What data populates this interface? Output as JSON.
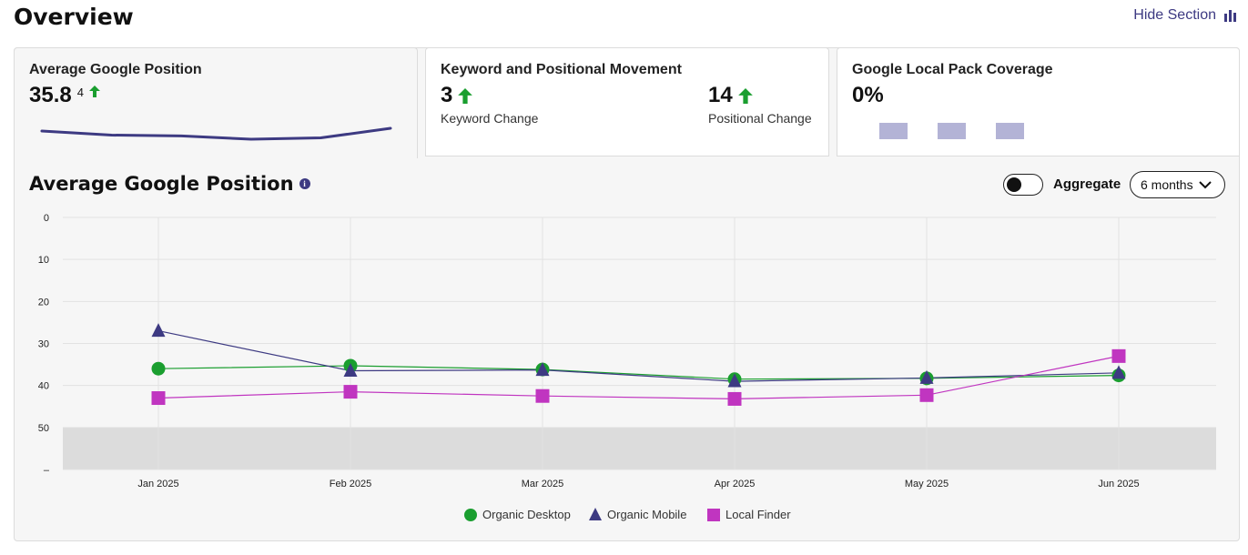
{
  "header": {
    "title": "Overview",
    "hide_section_label": "Hide Section"
  },
  "cards": {
    "avg_position": {
      "title": "Average Google Position",
      "value": "35.8",
      "change": "4",
      "sparkline": [
        34,
        35.5,
        35.8,
        37,
        36.5,
        33
      ]
    },
    "movement": {
      "title": "Keyword and Positional Movement",
      "keyword_value": "3",
      "keyword_label": "Keyword Change",
      "positional_value": "14",
      "positional_label": "Positional Change"
    },
    "local_pack": {
      "title": "Google Local Pack Coverage",
      "value": "0%"
    }
  },
  "chart_panel": {
    "title": "Average Google Position",
    "aggregate_label": "Aggregate",
    "aggregate_on": false,
    "period_select": "6 months"
  },
  "chart_data": {
    "type": "line",
    "categories": [
      "Jan 2025",
      "Feb 2025",
      "Mar 2025",
      "Apr 2025",
      "May 2025",
      "Jun 2025"
    ],
    "y_ticks": [
      "0",
      "10",
      "20",
      "30",
      "40",
      "50",
      "–"
    ],
    "ylim": [
      0,
      60
    ],
    "y_inverted": true,
    "shaded_region": [
      50,
      60
    ],
    "grid": true,
    "legend_position": "bottom",
    "series": [
      {
        "name": "Organic Desktop",
        "marker": "circle",
        "color": "#1a9e2f",
        "values": [
          36,
          35.3,
          36.2,
          38.5,
          38.3,
          37.6
        ]
      },
      {
        "name": "Organic Mobile",
        "marker": "triangle",
        "color": "#3d3a82",
        "values": [
          27,
          36.5,
          36.3,
          39,
          38.2,
          37
        ]
      },
      {
        "name": "Local Finder",
        "marker": "square",
        "color": "#c035c0",
        "values": [
          43,
          41.5,
          42.5,
          43.2,
          42.3,
          33
        ]
      }
    ]
  }
}
